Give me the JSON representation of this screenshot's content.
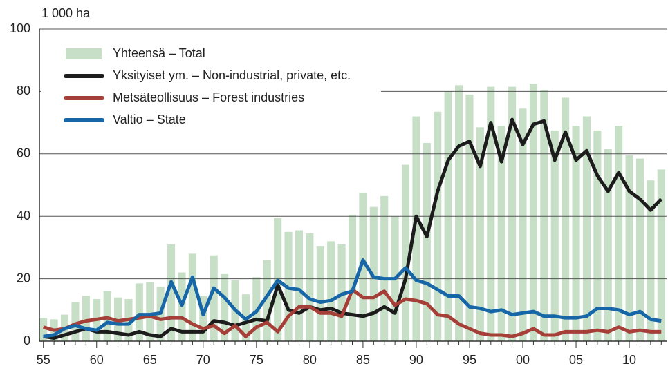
{
  "chart_data": {
    "type": "bar",
    "y_label": "1 000 ha",
    "categories": [
      "55",
      null,
      null,
      null,
      null,
      "60",
      null,
      null,
      null,
      null,
      "65",
      null,
      null,
      null,
      null,
      "70",
      null,
      null,
      null,
      null,
      "75",
      null,
      null,
      null,
      null,
      "80",
      null,
      null,
      null,
      null,
      "85",
      null,
      null,
      null,
      null,
      "90",
      null,
      null,
      null,
      null,
      "95",
      null,
      null,
      null,
      null,
      "00",
      null,
      null,
      null,
      null,
      "05",
      null,
      null,
      null,
      null,
      "10",
      null,
      null,
      null
    ],
    "ylim": [
      0,
      100
    ],
    "yticks": [
      0,
      20,
      40,
      60,
      80,
      100
    ],
    "grid": true,
    "legend": "upper left",
    "series": [
      {
        "name": "Yhteensä – Total",
        "type": "bar",
        "color": "#c6dfc6",
        "values": [
          7.5,
          7,
          8.5,
          12.5,
          14.5,
          13.5,
          16,
          14,
          13.5,
          18.5,
          19,
          17.5,
          31,
          22,
          28,
          14.5,
          27.5,
          21.5,
          19.5,
          15,
          20.5,
          26,
          39.5,
          35,
          35.5,
          34.5,
          30.5,
          32,
          31,
          40.5,
          47.5,
          43,
          46.5,
          40,
          56.5,
          72,
          63.5,
          73.5,
          80,
          82,
          79,
          68.5,
          81.5,
          69,
          81.5,
          74.5,
          82.5,
          80.5,
          67.5,
          78,
          69,
          72,
          67.5,
          61.5,
          69,
          59.5,
          58.5,
          51.5,
          55
        ]
      },
      {
        "name": "Yksityiset ym. – Non-industrial, private, etc.",
        "type": "line",
        "color": "#1c1c1c",
        "values": [
          1.5,
          1,
          2,
          3,
          4,
          3,
          3,
          2.5,
          2,
          3,
          2,
          1.5,
          4,
          3,
          3,
          3,
          6.5,
          6,
          5,
          6,
          7,
          6.5,
          18,
          10,
          9,
          11,
          10,
          10.5,
          9,
          8.5,
          8,
          9,
          11,
          9,
          20,
          40,
          33.5,
          48,
          58,
          62.5,
          64,
          56,
          70,
          57.5,
          71,
          63,
          69.5,
          70.5,
          58,
          67,
          58,
          61,
          53,
          48,
          54,
          48,
          45.5,
          42,
          45.5
        ]
      },
      {
        "name": "Metsäteollisuus – Forest industries",
        "type": "line",
        "color": "#a53f38",
        "values": [
          4.5,
          3.5,
          4,
          5.5,
          6.5,
          7,
          7.5,
          6.5,
          7,
          7.5,
          8,
          7,
          7.5,
          7.5,
          5.5,
          4,
          5,
          2.5,
          5,
          1.5,
          4.5,
          6,
          3,
          8,
          11,
          11,
          9,
          9,
          8,
          16.5,
          14,
          14,
          16,
          11.5,
          13.5,
          13,
          12,
          8.5,
          8,
          5.5,
          4,
          2.5,
          2,
          2,
          1.5,
          2.5,
          4,
          2,
          2,
          3,
          3,
          3,
          3.5,
          3,
          4.5,
          3,
          3.5,
          3,
          3
        ]
      },
      {
        "name": "Valtio – State",
        "type": "line",
        "color": "#1666a8",
        "values": [
          1.5,
          2,
          4,
          5,
          4,
          3.5,
          6,
          5.5,
          5.5,
          8.5,
          8.5,
          9,
          19,
          11.5,
          20.5,
          8.5,
          17,
          14,
          10,
          7,
          9.5,
          14.5,
          19.5,
          17,
          16.5,
          13.5,
          12.5,
          13,
          15,
          16,
          26,
          20.5,
          20,
          20,
          23.5,
          19.5,
          18.5,
          16.5,
          14.5,
          14.5,
          11,
          10.5,
          9.5,
          10,
          8.5,
          9,
          9.5,
          8,
          8,
          7.5,
          7.5,
          8,
          10.5,
          10.5,
          10,
          8.5,
          9.5,
          7,
          6.5
        ]
      }
    ]
  }
}
